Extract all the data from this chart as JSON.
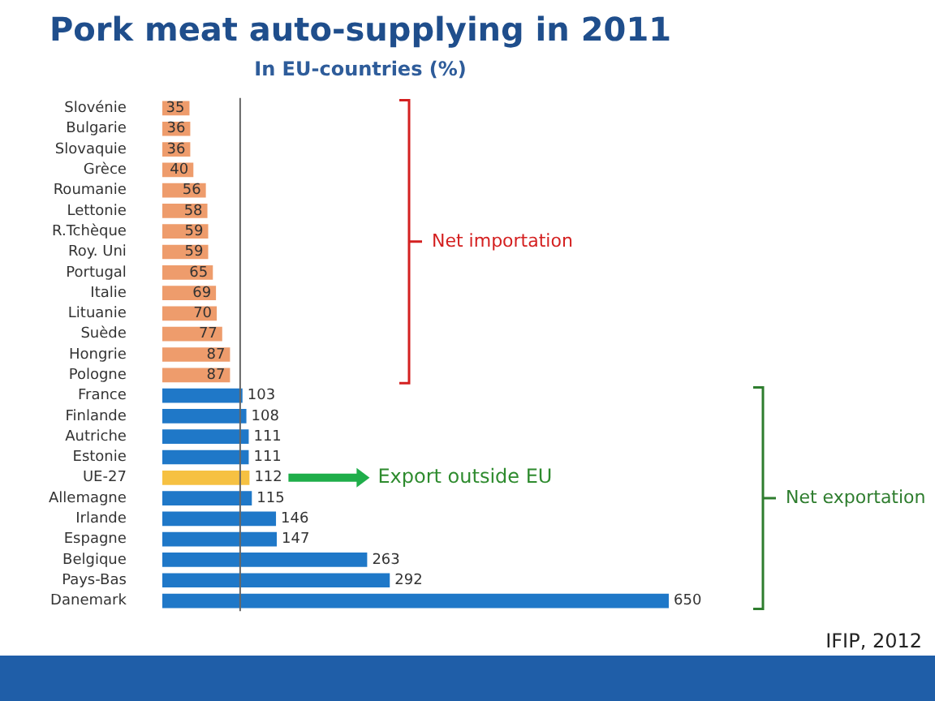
{
  "chart_data": {
    "type": "bar",
    "orientation": "horizontal",
    "title": "Pork meat auto-supplying in 2011",
    "subtitle": "In EU-countries (%)",
    "categories": [
      "Slovénie",
      "Bulgarie",
      "Slovaquie",
      "Grèce",
      "Roumanie",
      "Lettonie",
      "R.Tchèque",
      "Roy. Uni",
      "Portugal",
      "Italie",
      "Lituanie",
      "Suède",
      "Hongrie",
      "Pologne",
      "France",
      "Finlande",
      "Autriche",
      "Estonie",
      "UE-27",
      "Allemagne",
      "Irlande",
      "Espagne",
      "Belgique",
      "Pays-Bas",
      "Danemark"
    ],
    "values": [
      35,
      36,
      36,
      40,
      56,
      58,
      59,
      59,
      65,
      69,
      70,
      77,
      87,
      87,
      103,
      108,
      111,
      111,
      112,
      115,
      146,
      147,
      263,
      292,
      650
    ],
    "value_labels": [
      "35",
      "36",
      "36",
      "40",
      "56",
      "58",
      "59",
      "59",
      "65",
      "69",
      "70",
      "77",
      "87",
      "87",
      "103",
      "108",
      "111",
      "111",
      "112",
      "115",
      "146",
      "147",
      "263",
      "292",
      "650"
    ],
    "colors": [
      "#ee9c6c",
      "#ee9c6c",
      "#ee9c6c",
      "#ee9c6c",
      "#ee9c6c",
      "#ee9c6c",
      "#ee9c6c",
      "#ee9c6c",
      "#ee9c6c",
      "#ee9c6c",
      "#ee9c6c",
      "#ee9c6c",
      "#ee9c6c",
      "#ee9c6c",
      "#1f78c8",
      "#1f78c8",
      "#1f78c8",
      "#1f78c8",
      "#f6c142",
      "#1f78c8",
      "#1f78c8",
      "#1f78c8",
      "#1f78c8",
      "#1f78c8",
      "#1f78c8"
    ],
    "tick_labels": "y",
    "ref_lines": [
      {
        "axis": "x",
        "value": 100,
        "color": "#666666"
      }
    ],
    "grid": false,
    "legend": false,
    "annotations": [
      "Net importation",
      "Export outside EU",
      "Net exportation",
      "IFIP, 2012"
    ]
  }
}
